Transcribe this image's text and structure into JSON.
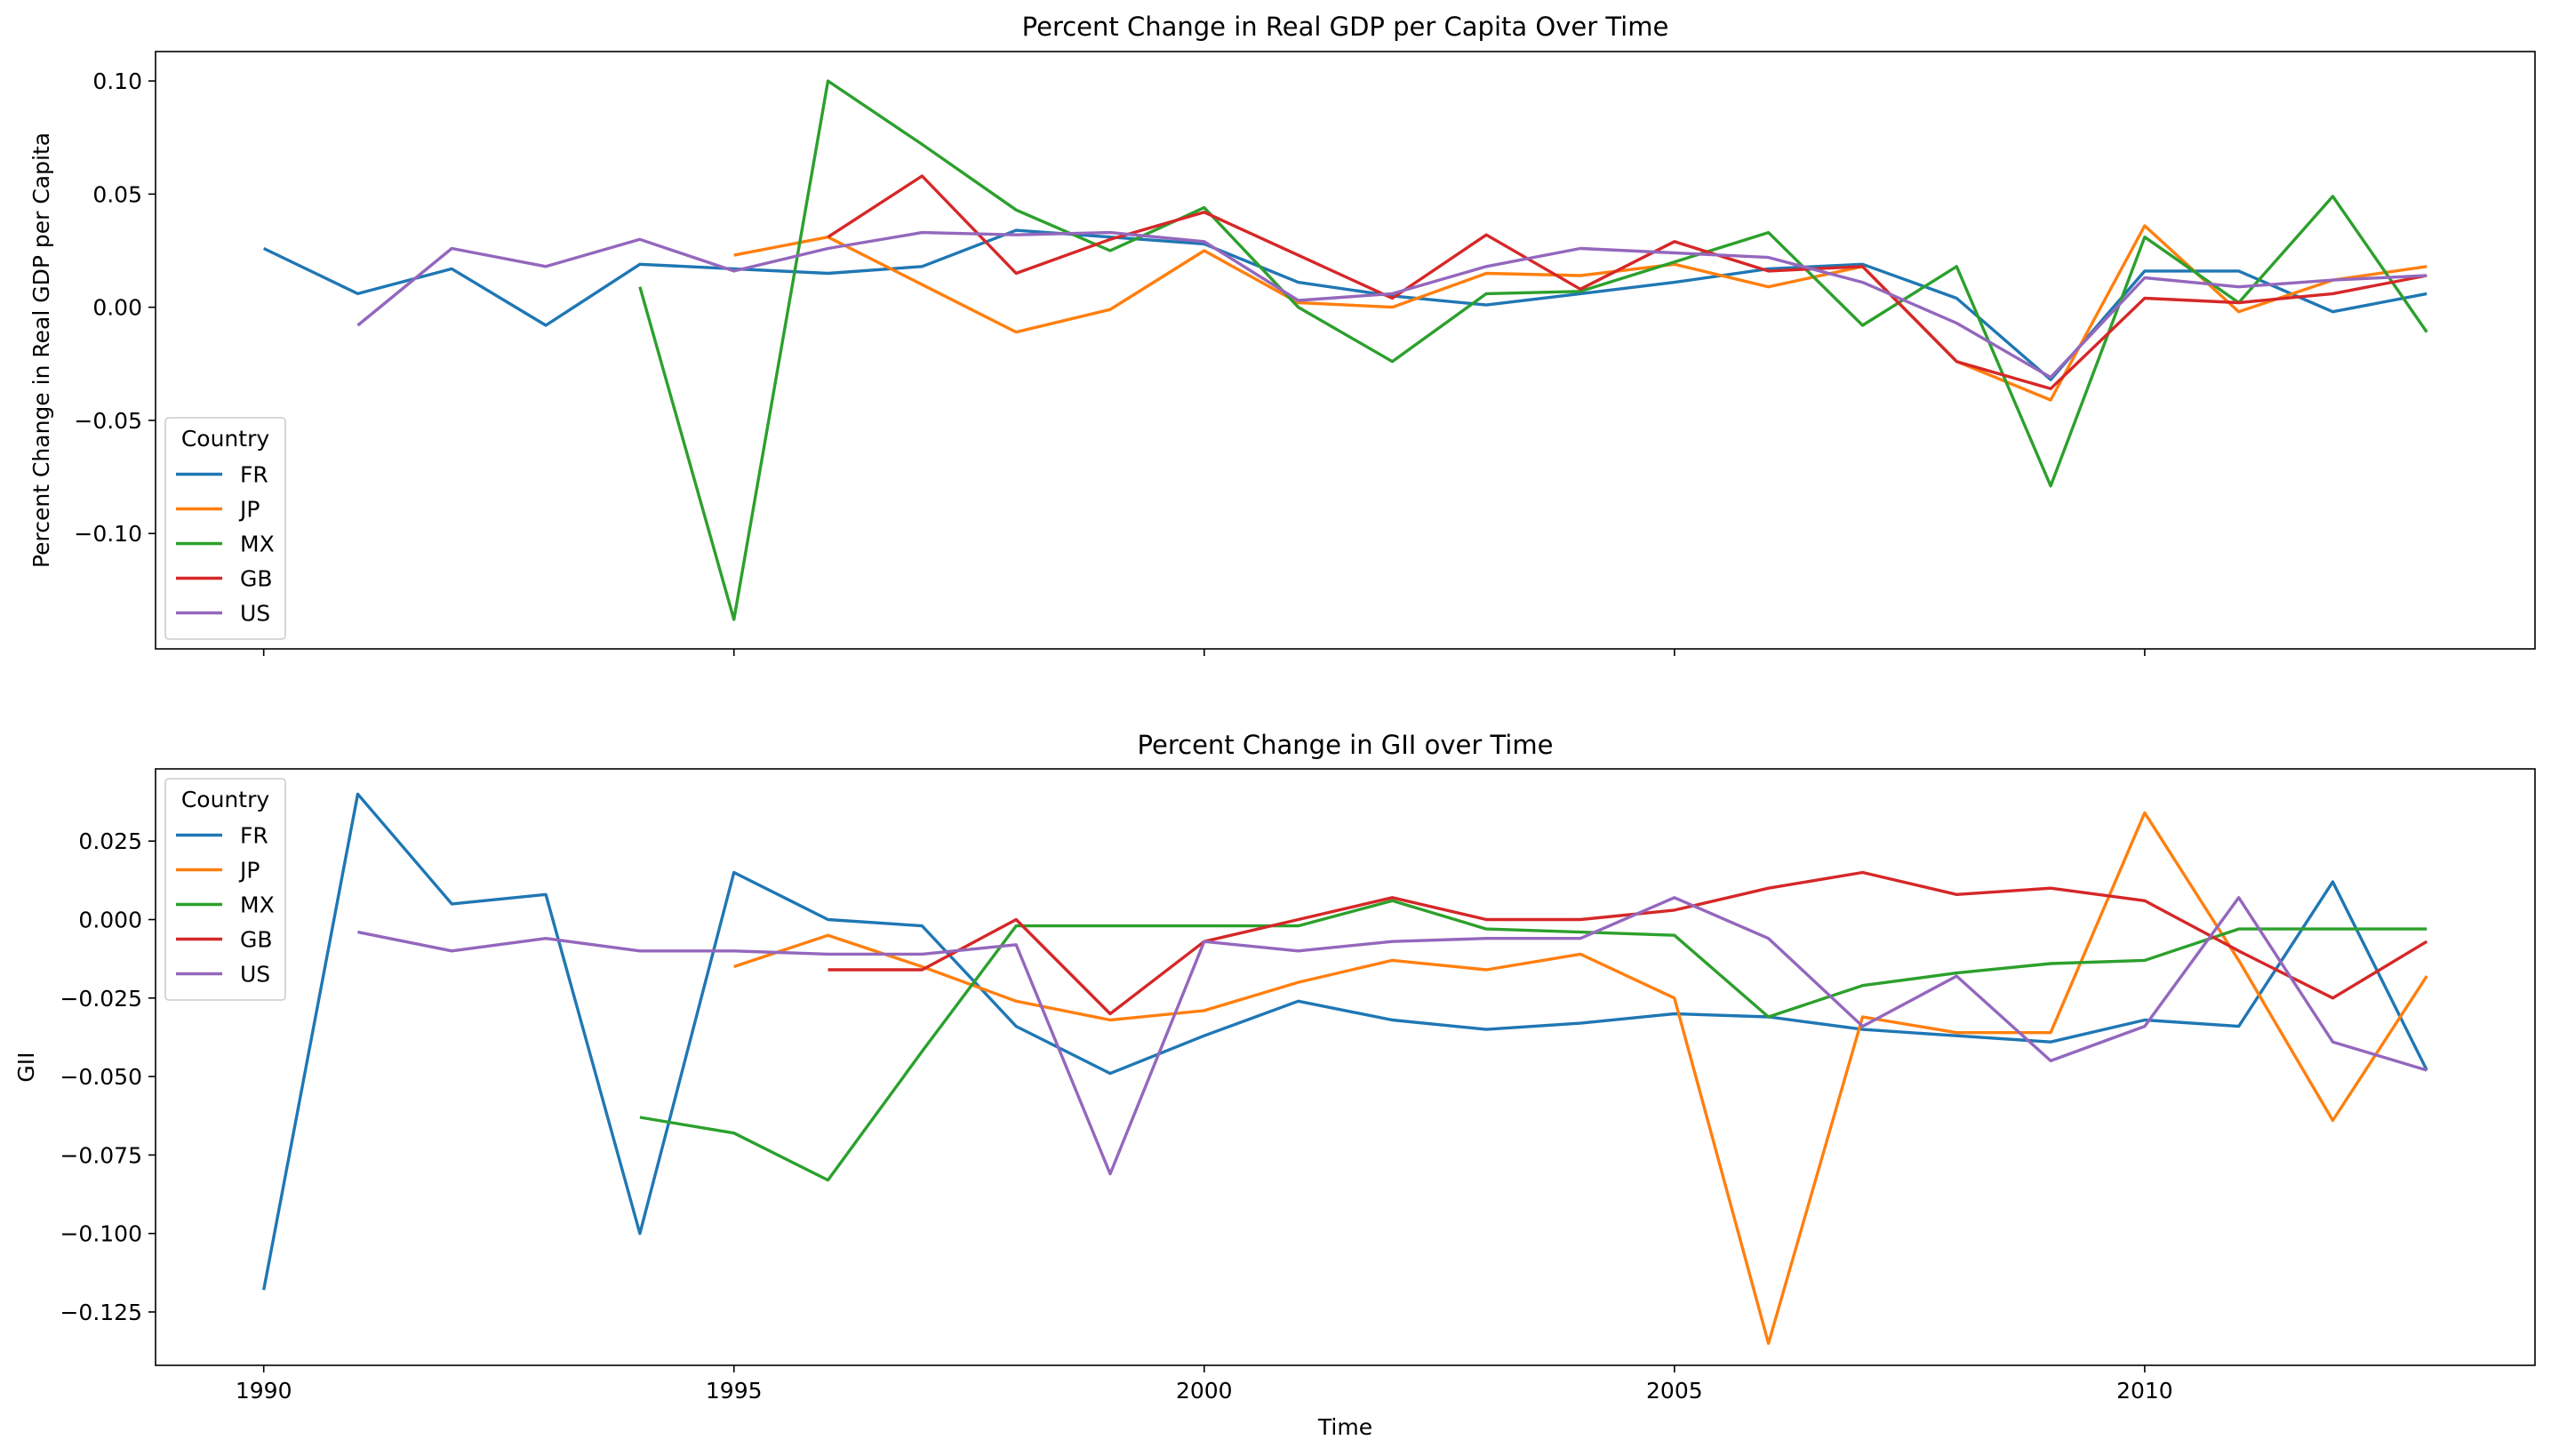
{
  "chart_data": [
    {
      "type": "line",
      "title": "Percent Change in Real GDP per Capita Over Time",
      "xlabel": "",
      "ylabel": "Percent Change in Real GDP per Capita",
      "xlim": [
        1988.85,
        2014.15
      ],
      "ylim": [
        -0.151,
        0.113
      ],
      "yticks": [
        0.1,
        0.05,
        0.0,
        -0.05,
        -0.1
      ],
      "ytick_labels": [
        "0.10",
        "0.05",
        "0.00",
        "−0.05",
        "−0.10"
      ],
      "xticks": [
        1990,
        1995,
        2000,
        2005,
        2010
      ],
      "xtick_labels": [],
      "legend": {
        "title": "Country",
        "position": "lower-left"
      },
      "grid": false,
      "series": [
        {
          "name": "FR",
          "color": "#1f77b4",
          "x": [
            1990,
            1991,
            1992,
            1993,
            1994,
            1995,
            1996,
            1997,
            1998,
            1999,
            2000,
            2001,
            2002,
            2003,
            2004,
            2005,
            2006,
            2007,
            2008,
            2009,
            2010,
            2011,
            2012,
            2013
          ],
          "y": [
            0.026,
            0.006,
            0.017,
            -0.008,
            0.019,
            0.017,
            0.015,
            0.018,
            0.034,
            0.031,
            0.028,
            0.011,
            0.005,
            0.001,
            0.006,
            0.011,
            0.017,
            0.019,
            0.004,
            -0.032,
            0.016,
            0.016,
            -0.002,
            0.006
          ]
        },
        {
          "name": "JP",
          "color": "#ff7f0e",
          "x": [
            1995,
            1996,
            1997,
            1998,
            1999,
            2000,
            2001,
            2002,
            2003,
            2004,
            2005,
            2006,
            2007,
            2008,
            2009,
            2010,
            2011,
            2012,
            2013
          ],
          "y": [
            0.023,
            0.031,
            0.01,
            -0.011,
            -0.001,
            0.025,
            0.002,
            0.0,
            0.015,
            0.014,
            0.019,
            0.009,
            0.018,
            -0.024,
            -0.041,
            0.036,
            -0.002,
            0.012,
            0.018
          ]
        },
        {
          "name": "MX",
          "color": "#2ca02c",
          "x": [
            1994,
            1995,
            1996,
            1997,
            1998,
            1999,
            2000,
            2001,
            2002,
            2003,
            2004,
            2005,
            2006,
            2007,
            2008,
            2009,
            2010,
            2011,
            2012,
            2013
          ],
          "y": [
            0.009,
            -0.138,
            0.1,
            0.072,
            0.043,
            0.025,
            0.044,
            0.0,
            -0.024,
            0.006,
            0.007,
            0.02,
            0.033,
            -0.008,
            0.018,
            -0.079,
            0.031,
            0.002,
            0.049,
            -0.011
          ]
        },
        {
          "name": "GB",
          "color": "#d62728",
          "x": [
            1996,
            1997,
            1998,
            1999,
            2000,
            2001,
            2002,
            2003,
            2004,
            2005,
            2006,
            2007,
            2008,
            2009,
            2010,
            2011,
            2012,
            2013
          ],
          "y": [
            0.031,
            0.058,
            0.015,
            0.03,
            0.042,
            0.023,
            0.004,
            0.032,
            0.008,
            0.029,
            0.016,
            0.018,
            -0.024,
            -0.036,
            0.004,
            0.002,
            0.006,
            0.014
          ]
        },
        {
          "name": "US",
          "color": "#9467bd",
          "x": [
            1991,
            1992,
            1993,
            1994,
            1995,
            1996,
            1997,
            1998,
            1999,
            2000,
            2001,
            2002,
            2003,
            2004,
            2005,
            2006,
            2007,
            2008,
            2009,
            2010,
            2011,
            2012,
            2013
          ],
          "y": [
            -0.008,
            0.026,
            0.018,
            0.03,
            0.016,
            0.026,
            0.033,
            0.032,
            0.033,
            0.029,
            0.003,
            0.006,
            0.018,
            0.026,
            0.024,
            0.022,
            0.011,
            -0.007,
            -0.031,
            0.013,
            0.009,
            0.012,
            0.014
          ]
        }
      ]
    },
    {
      "type": "line",
      "title": "Percent Change in GII over Time",
      "xlabel": "Time",
      "ylabel": "GII",
      "xlim": [
        1988.85,
        2014.15
      ],
      "ylim": [
        -0.142,
        0.048
      ],
      "yticks": [
        0.025,
        0.0,
        -0.025,
        -0.05,
        -0.075,
        -0.1,
        -0.125
      ],
      "ytick_labels": [
        "0.025",
        "0.000",
        "−0.025",
        "−0.050",
        "−0.075",
        "−0.100",
        "−0.125"
      ],
      "xticks": [
        1990,
        1995,
        2000,
        2005,
        2010
      ],
      "xtick_labels": [
        "1990",
        "1995",
        "2000",
        "2005",
        "2010"
      ],
      "legend": {
        "title": "Country",
        "position": "upper-left"
      },
      "grid": false,
      "series": [
        {
          "name": "FR",
          "color": "#1f77b4",
          "x": [
            1990,
            1991,
            1992,
            1993,
            1994,
            1995,
            1996,
            1997,
            1998,
            1999,
            2000,
            2001,
            2002,
            2003,
            2004,
            2005,
            2006,
            2007,
            2008,
            2009,
            2010,
            2011,
            2012,
            2013
          ],
          "y": [
            -0.118,
            0.04,
            0.005,
            0.008,
            -0.1,
            0.015,
            0.0,
            -0.002,
            -0.034,
            -0.049,
            -0.037,
            -0.026,
            -0.032,
            -0.035,
            -0.033,
            -0.03,
            -0.031,
            -0.035,
            -0.037,
            -0.039,
            -0.032,
            -0.034,
            0.012,
            -0.048
          ]
        },
        {
          "name": "JP",
          "color": "#ff7f0e",
          "x": [
            1995,
            1996,
            1997,
            1998,
            1999,
            2000,
            2001,
            2002,
            2003,
            2004,
            2005,
            2006,
            2007,
            2008,
            2009,
            2010,
            2011,
            2012,
            2013
          ],
          "y": [
            -0.015,
            -0.005,
            -0.015,
            -0.026,
            -0.032,
            -0.029,
            -0.02,
            -0.013,
            -0.016,
            -0.011,
            -0.025,
            -0.135,
            -0.031,
            -0.036,
            -0.036,
            0.034,
            -0.013,
            -0.064,
            -0.018
          ]
        },
        {
          "name": "MX",
          "color": "#2ca02c",
          "x": [
            1994,
            1995,
            1996,
            1997,
            1998,
            1999,
            2000,
            2001,
            2002,
            2003,
            2004,
            2005,
            2006,
            2007,
            2008,
            2009,
            2010,
            2011,
            2012,
            2013
          ],
          "y": [
            -0.063,
            -0.068,
            -0.083,
            -0.042,
            -0.002,
            -0.002,
            -0.002,
            -0.002,
            0.006,
            -0.003,
            -0.004,
            -0.005,
            -0.031,
            -0.021,
            -0.017,
            -0.014,
            -0.013,
            -0.003,
            -0.003,
            -0.003
          ]
        },
        {
          "name": "GB",
          "color": "#d62728",
          "x": [
            1996,
            1997,
            1998,
            1999,
            2000,
            2001,
            2002,
            2003,
            2004,
            2005,
            2006,
            2007,
            2008,
            2009,
            2010,
            2011,
            2012,
            2013
          ],
          "y": [
            -0.016,
            -0.016,
            0.0,
            -0.03,
            -0.007,
            0.0,
            0.007,
            0.0,
            0.0,
            0.003,
            0.01,
            0.015,
            0.008,
            0.01,
            0.006,
            -0.01,
            -0.025,
            -0.007
          ]
        },
        {
          "name": "US",
          "color": "#9467bd",
          "x": [
            1991,
            1992,
            1993,
            1994,
            1995,
            1996,
            1997,
            1998,
            1999,
            2000,
            2001,
            2002,
            2003,
            2004,
            2005,
            2006,
            2007,
            2008,
            2009,
            2010,
            2011,
            2012,
            2013
          ],
          "y": [
            -0.004,
            -0.01,
            -0.006,
            -0.01,
            -0.01,
            -0.011,
            -0.011,
            -0.008,
            -0.081,
            -0.007,
            -0.01,
            -0.007,
            -0.006,
            -0.006,
            0.007,
            -0.006,
            -0.034,
            -0.018,
            -0.045,
            -0.034,
            0.007,
            -0.039,
            -0.048
          ]
        }
      ]
    }
  ]
}
